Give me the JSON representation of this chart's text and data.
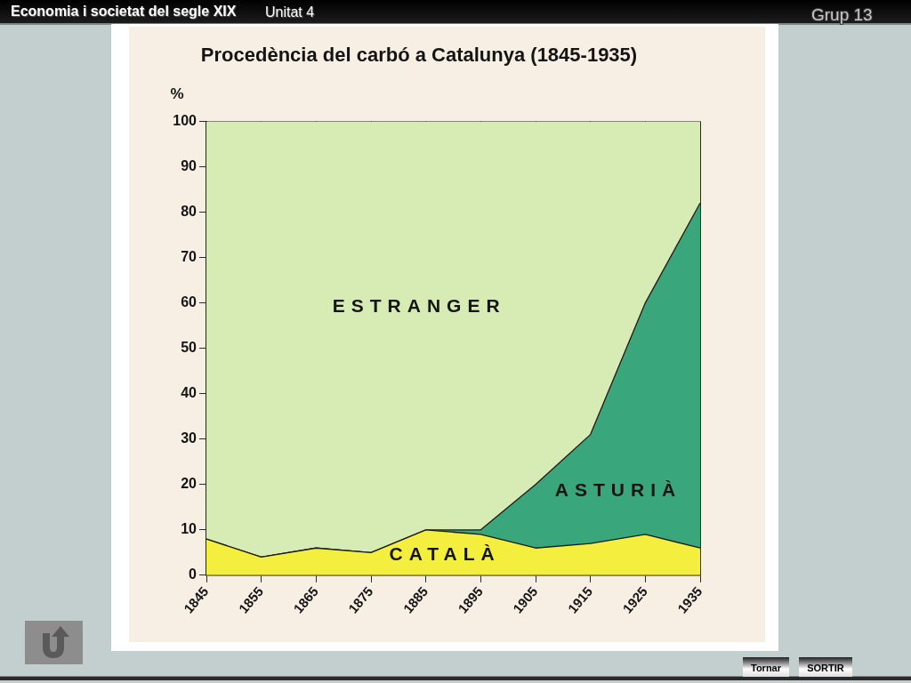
{
  "chart_data": {
    "type": "area",
    "title": "Procedència del carbó a Catalunya (1845-1935)",
    "ylabel": "%",
    "categories": [
      "1845",
      "1855",
      "1865",
      "1875",
      "1885",
      "1895",
      "1905",
      "1915",
      "1925",
      "1935"
    ],
    "stacked": true,
    "series": [
      {
        "name": "CATALÀ",
        "color": "#f4ef3e",
        "values": [
          8,
          4,
          6,
          5,
          10,
          9,
          6,
          7,
          9,
          6
        ]
      },
      {
        "name": "ASTURIÀ",
        "color": "#3aa67c",
        "values": [
          0,
          0,
          0,
          0,
          0,
          1,
          14,
          24,
          51,
          76
        ]
      },
      {
        "name": "ESTRANGER",
        "color": "#d7ecb4",
        "values": [
          92,
          96,
          94,
          95,
          90,
          90,
          80,
          69,
          40,
          18
        ]
      }
    ],
    "ylim": [
      0,
      100
    ],
    "yticks": [
      0,
      10,
      20,
      30,
      40,
      50,
      60,
      70,
      80,
      90,
      100
    ],
    "grid": "x",
    "annotations": [
      "Economia i societat del segle XIX",
      "Unitat 4",
      "Grup 13",
      "Tornar",
      "SORTIR"
    ]
  }
}
